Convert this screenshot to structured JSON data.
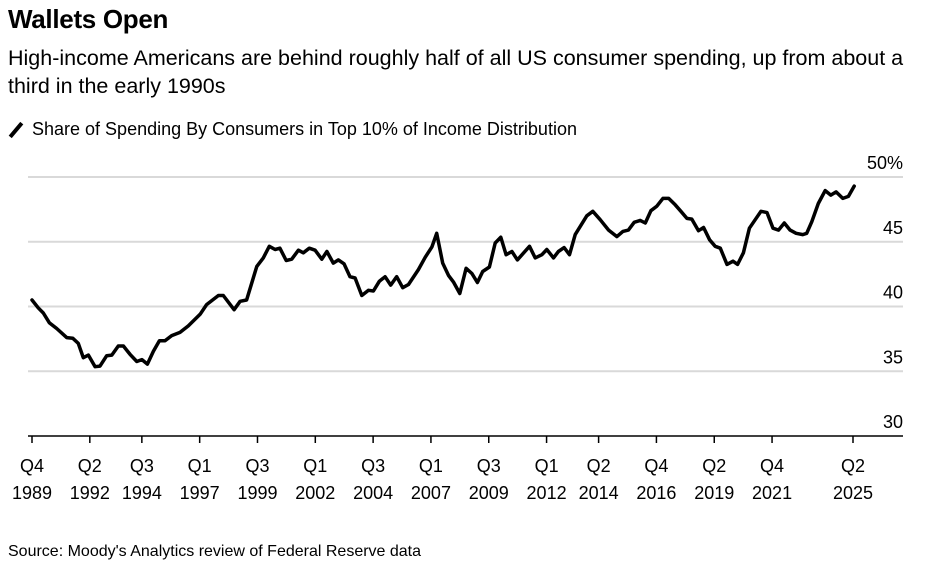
{
  "title": "Wallets Open",
  "subtitle": "High-income Americans are behind roughly half of all US consumer spending, up from about a third in the early 1990s",
  "source": "Source: Moody's Analytics review of Federal Reserve data",
  "chart_data": {
    "type": "line",
    "title": "Wallets Open",
    "series": [
      {
        "name": "Share of Spending By Consumers in Top 10% of Income Distribution",
        "color": "#000000",
        "x_unit": "year (decimal)",
        "points": [
          [
            1989.75,
            40.5
          ],
          [
            1990.02,
            39.9
          ],
          [
            1990.24,
            39.5
          ],
          [
            1990.5,
            38.75
          ],
          [
            1990.82,
            38.3
          ],
          [
            1991.25,
            37.6
          ],
          [
            1991.51,
            37.55
          ],
          [
            1991.75,
            37.15
          ],
          [
            1991.97,
            36.05
          ],
          [
            1992.19,
            36.25
          ],
          [
            1992.48,
            35.35
          ],
          [
            1992.69,
            35.4
          ],
          [
            1992.98,
            36.2
          ],
          [
            1993.2,
            36.25
          ],
          [
            1993.48,
            36.95
          ],
          [
            1993.7,
            36.95
          ],
          [
            1993.99,
            36.3
          ],
          [
            1994.28,
            35.75
          ],
          [
            1994.5,
            35.9
          ],
          [
            1994.74,
            35.55
          ],
          [
            1995.0,
            36.55
          ],
          [
            1995.26,
            37.35
          ],
          [
            1995.5,
            37.35
          ],
          [
            1995.79,
            37.75
          ],
          [
            1996.15,
            38.0
          ],
          [
            1996.51,
            38.5
          ],
          [
            1997.02,
            39.4
          ],
          [
            1997.3,
            40.15
          ],
          [
            1997.81,
            40.85
          ],
          [
            1998.02,
            40.85
          ],
          [
            1998.49,
            39.75
          ],
          [
            1998.75,
            40.4
          ],
          [
            1999.03,
            40.5
          ],
          [
            1999.47,
            43.1
          ],
          [
            1999.75,
            43.75
          ],
          [
            2000.01,
            44.65
          ],
          [
            2000.26,
            44.4
          ],
          [
            2000.47,
            44.5
          ],
          [
            2000.74,
            43.55
          ],
          [
            2000.98,
            43.65
          ],
          [
            2001.27,
            44.35
          ],
          [
            2001.48,
            44.15
          ],
          [
            2001.74,
            44.5
          ],
          [
            2001.99,
            44.35
          ],
          [
            2002.28,
            43.65
          ],
          [
            2002.5,
            44.25
          ],
          [
            2002.78,
            43.35
          ],
          [
            2003.0,
            43.6
          ],
          [
            2003.24,
            43.3
          ],
          [
            2003.5,
            42.3
          ],
          [
            2003.72,
            42.2
          ],
          [
            2004.01,
            40.85
          ],
          [
            2004.3,
            41.25
          ],
          [
            2004.51,
            41.2
          ],
          [
            2004.77,
            41.95
          ],
          [
            2005.02,
            42.3
          ],
          [
            2005.26,
            41.65
          ],
          [
            2005.52,
            42.3
          ],
          [
            2005.78,
            41.45
          ],
          [
            2006.03,
            41.7
          ],
          [
            2006.46,
            42.85
          ],
          [
            2006.75,
            43.8
          ],
          [
            2007.04,
            44.6
          ],
          [
            2007.25,
            45.65
          ],
          [
            2007.51,
            43.35
          ],
          [
            2007.76,
            42.4
          ],
          [
            2007.97,
            41.9
          ],
          [
            2008.25,
            41.0
          ],
          [
            2008.52,
            42.95
          ],
          [
            2008.77,
            42.55
          ],
          [
            2009.01,
            41.85
          ],
          [
            2009.24,
            42.7
          ],
          [
            2009.53,
            43.05
          ],
          [
            2009.78,
            44.9
          ],
          [
            2010.02,
            45.35
          ],
          [
            2010.25,
            44.0
          ],
          [
            2010.5,
            44.25
          ],
          [
            2010.74,
            43.6
          ],
          [
            2011.26,
            44.65
          ],
          [
            2011.51,
            43.75
          ],
          [
            2011.8,
            44.0
          ],
          [
            2012.01,
            44.4
          ],
          [
            2012.3,
            43.75
          ],
          [
            2012.51,
            44.25
          ],
          [
            2012.76,
            44.55
          ],
          [
            2012.99,
            44.0
          ],
          [
            2013.24,
            45.55
          ],
          [
            2013.74,
            47.0
          ],
          [
            2014.0,
            47.35
          ],
          [
            2014.32,
            46.7
          ],
          [
            2014.68,
            45.9
          ],
          [
            2015.04,
            45.4
          ],
          [
            2015.3,
            45.8
          ],
          [
            2015.54,
            45.9
          ],
          [
            2015.79,
            46.5
          ],
          [
            2016.05,
            46.65
          ],
          [
            2016.27,
            46.45
          ],
          [
            2016.51,
            47.4
          ],
          [
            2016.77,
            47.75
          ],
          [
            2017.03,
            48.35
          ],
          [
            2017.28,
            48.35
          ],
          [
            2017.56,
            47.85
          ],
          [
            2017.81,
            47.35
          ],
          [
            2018.07,
            46.8
          ],
          [
            2018.28,
            46.75
          ],
          [
            2018.57,
            45.85
          ],
          [
            2018.79,
            46.1
          ],
          [
            2019.05,
            45.15
          ],
          [
            2019.29,
            44.65
          ],
          [
            2019.51,
            44.5
          ],
          [
            2019.8,
            43.25
          ],
          [
            2020.06,
            43.5
          ],
          [
            2020.26,
            43.25
          ],
          [
            2020.51,
            44.15
          ],
          [
            2020.77,
            46.05
          ],
          [
            2021.02,
            46.7
          ],
          [
            2021.27,
            47.35
          ],
          [
            2021.53,
            47.25
          ],
          [
            2021.79,
            46.05
          ],
          [
            2022.03,
            45.9
          ],
          [
            2022.28,
            46.45
          ],
          [
            2022.53,
            45.9
          ],
          [
            2022.79,
            45.65
          ],
          [
            2023.08,
            45.55
          ],
          [
            2023.25,
            45.65
          ],
          [
            2023.47,
            46.55
          ],
          [
            2023.75,
            47.95
          ],
          [
            2024.05,
            48.95
          ],
          [
            2024.29,
            48.6
          ],
          [
            2024.52,
            48.85
          ],
          [
            2024.81,
            48.35
          ],
          [
            2025.05,
            48.5
          ],
          [
            2025.3,
            49.3
          ]
        ]
      }
    ],
    "xlim": [
      1989.75,
      2025.25
    ],
    "x_ticks": [
      {
        "q": "Q4",
        "year": "1989",
        "at": 1989.75
      },
      {
        "q": "Q2",
        "year": "1992",
        "at": 1992.25
      },
      {
        "q": "Q3",
        "year": "1994",
        "at": 1994.5
      },
      {
        "q": "Q1",
        "year": "1997",
        "at": 1997.0
      },
      {
        "q": "Q3",
        "year": "1999",
        "at": 1999.5
      },
      {
        "q": "Q1",
        "year": "2002",
        "at": 2002.0
      },
      {
        "q": "Q3",
        "year": "2004",
        "at": 2004.5
      },
      {
        "q": "Q1",
        "year": "2007",
        "at": 2007.0
      },
      {
        "q": "Q3",
        "year": "2009",
        "at": 2009.5
      },
      {
        "q": "Q1",
        "year": "2012",
        "at": 2012.0
      },
      {
        "q": "Q2",
        "year": "2014",
        "at": 2014.25
      },
      {
        "q": "Q4",
        "year": "2016",
        "at": 2016.75
      },
      {
        "q": "Q2",
        "year": "2019",
        "at": 2019.25
      },
      {
        "q": "Q4",
        "year": "2021",
        "at": 2021.75
      },
      {
        "q": "Q2",
        "year": "2025",
        "at": 2025.25
      }
    ],
    "ylim": [
      30,
      50
    ],
    "y_ticks": [
      {
        "v": 30,
        "label": "30"
      },
      {
        "v": 35,
        "label": "35"
      },
      {
        "v": 40,
        "label": "40"
      },
      {
        "v": 45,
        "label": "45"
      },
      {
        "v": 50,
        "label": "50%"
      }
    ],
    "grid": true,
    "gridline_color": "#d9d9d9",
    "legend_position": "top-left"
  }
}
